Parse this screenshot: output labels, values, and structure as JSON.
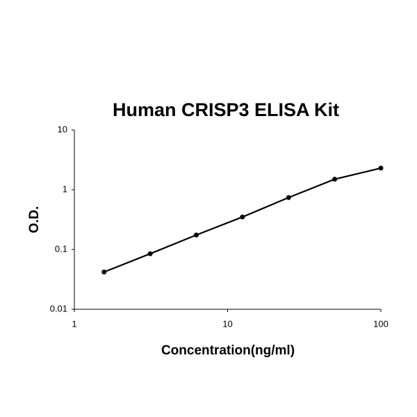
{
  "chart_data": {
    "type": "line",
    "title": "Human CRISP3 ELISA Kit",
    "x_label": "Concentration(ng/ml)",
    "y_label": "O.D.",
    "x": [
      1.5625,
      3.125,
      6.25,
      12.5,
      25,
      50,
      100
    ],
    "series": [
      {
        "color": "#000000",
        "marker": "circle",
        "values": [
          0.042,
          0.085,
          0.175,
          0.35,
          0.74,
          1.5,
          2.3
        ]
      }
    ],
    "xscale": "log",
    "yscale": "log",
    "xlim": [
      1,
      100
    ],
    "ylim": [
      0.01,
      10
    ],
    "xticks": [
      1,
      10,
      100
    ],
    "yticks": [
      0.01,
      0.1,
      1,
      10
    ]
  }
}
